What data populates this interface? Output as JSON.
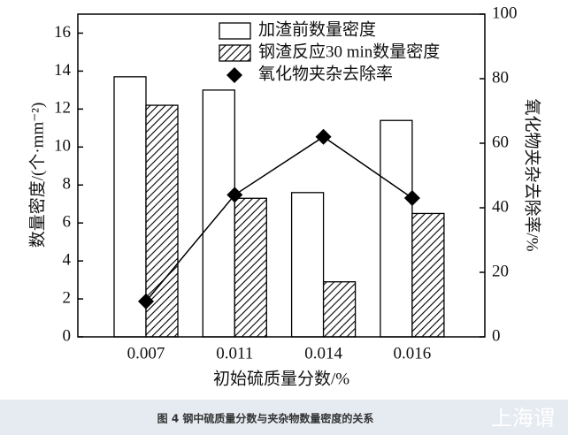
{
  "chart_data": {
    "type": "bar",
    "title": "图 4 钢中硫质量分数与夹杂物数量密度的关系",
    "watermark": "上海谓",
    "xlabel": "初始硫质量分数/%",
    "ylabel": "数量密度/(个·mm⁻²)",
    "y2label": "氧化物夹杂去除率/%",
    "categories": [
      "0.007",
      "0.011",
      "0.014",
      "0.016"
    ],
    "series": [
      {
        "name": "加渣前数量密度",
        "type": "bar",
        "color": "#ffffff",
        "values": [
          13.7,
          13.0,
          7.6,
          11.4
        ]
      },
      {
        "name": "钢渣反应30 min数量密度",
        "type": "bar",
        "color": "#000000",
        "hatch": true,
        "values": [
          12.2,
          7.3,
          2.9,
          6.5
        ]
      },
      {
        "name": "氧化物夹杂去除率",
        "type": "line",
        "axis": "y2",
        "color": "#000000",
        "values": [
          11,
          44,
          62,
          43
        ]
      }
    ],
    "ylim": [
      0,
      17
    ],
    "yticks": [
      0,
      2,
      4,
      6,
      8,
      10,
      12,
      14,
      16
    ],
    "y2lim": [
      0,
      100
    ],
    "y2ticks": [
      0,
      20,
      40,
      60,
      80,
      100
    ]
  }
}
